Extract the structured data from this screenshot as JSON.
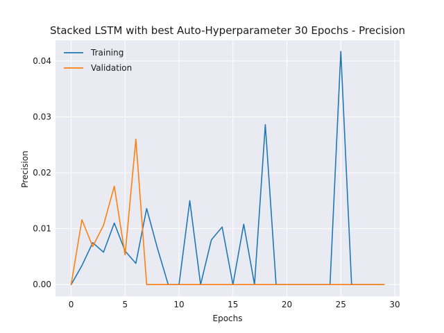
{
  "chart_data": {
    "type": "line",
    "title": "Stacked LSTM with best Auto-Hyperparameter 30 Epochs - Precision",
    "xlabel": "Epochs",
    "ylabel": "Precision",
    "xlim": [
      -1.45,
      30.45
    ],
    "ylim": [
      -0.00208,
      0.0437
    ],
    "x_ticks": [
      0,
      5,
      10,
      15,
      20,
      25,
      30
    ],
    "y_ticks": [
      0.0,
      0.01,
      0.02,
      0.03,
      0.04
    ],
    "y_tick_labels": [
      "0.00",
      "0.01",
      "0.02",
      "0.03",
      "0.04"
    ],
    "grid": true,
    "legend_position": "top-left",
    "x": [
      0,
      1,
      2,
      3,
      4,
      5,
      6,
      7,
      8,
      9,
      10,
      11,
      12,
      13,
      14,
      15,
      16,
      17,
      18,
      19,
      20,
      21,
      22,
      23,
      24,
      25,
      26,
      27,
      28,
      29
    ],
    "series": [
      {
        "name": "Training",
        "color": "#1f77b4",
        "values": [
          0.0,
          0.0034,
          0.0075,
          0.0058,
          0.011,
          0.006,
          0.0038,
          0.0136,
          0.0065,
          0.0,
          0.0,
          0.015,
          0.0,
          0.008,
          0.0103,
          0.0,
          0.0108,
          0.0,
          0.0286,
          0.0,
          0.0,
          0.0,
          0.0,
          0.0,
          0.0,
          0.0417,
          0.0,
          0.0,
          0.0,
          0.0
        ]
      },
      {
        "name": "Validation",
        "color": "#ff7f0e",
        "values": [
          0.0,
          0.0116,
          0.0068,
          0.0106,
          0.0176,
          0.0053,
          0.026,
          0.0,
          0.0,
          0.0,
          0.0,
          0.0,
          0.0,
          0.0,
          0.0,
          0.0,
          0.0,
          0.0,
          0.0,
          0.0,
          0.0,
          0.0,
          0.0,
          0.0,
          0.0,
          0.0,
          0.0,
          0.0,
          0.0,
          0.0
        ]
      }
    ]
  }
}
